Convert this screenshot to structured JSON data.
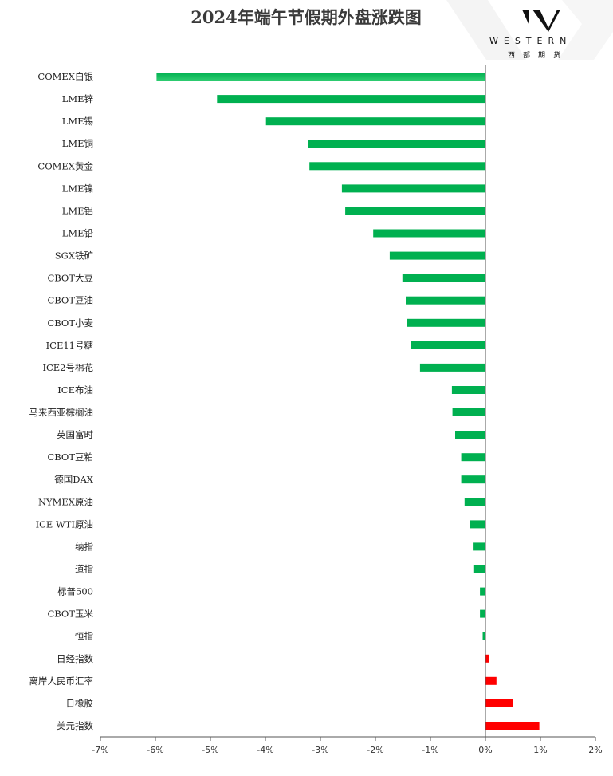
{
  "logo": {
    "name": "WESTERN",
    "name_cn": "西部期货"
  },
  "chart_data": {
    "type": "bar",
    "orientation": "horizontal",
    "title": "2024年端午节假期外盘涨跌图",
    "categories": [
      "COMEX白银",
      "LME锌",
      "LME锡",
      "LME铜",
      "COMEX黄金",
      "LME镍",
      "LME铝",
      "LME铅",
      "SGX铁矿",
      "CBOT大豆",
      "CBOT豆油",
      "CBOT小麦",
      "ICE11号糖",
      "ICE2号棉花",
      "ICE布油",
      "马来西亚棕榈油",
      "英国富时",
      "CBOT豆粕",
      "德国DAX",
      "NYMEX原油",
      "ICE WTI原油",
      "纳指",
      "道指",
      "标普500",
      "CBOT玉米",
      "恒指",
      "日经指数",
      "离岸人民币汇率",
      "日橡胶",
      "美元指数"
    ],
    "values": [
      -5.98,
      -4.88,
      -3.99,
      -3.23,
      -3.2,
      -2.61,
      -2.55,
      -2.04,
      -1.74,
      -1.51,
      -1.45,
      -1.42,
      -1.35,
      -1.19,
      -0.61,
      -0.6,
      -0.55,
      -0.44,
      -0.44,
      -0.38,
      -0.28,
      -0.23,
      -0.22,
      -0.1,
      -0.1,
      -0.05,
      0.07,
      0.2,
      0.5,
      0.98
    ],
    "xlim": [
      -7,
      2
    ],
    "xticks": [
      -7,
      -6,
      -5,
      -4,
      -3,
      -2,
      -1,
      0,
      1,
      2
    ],
    "xtick_labels": [
      "-7%",
      "-6%",
      "-5%",
      "-4%",
      "-3%",
      "-2%",
      "-1%",
      "0%",
      "1%",
      "2%"
    ],
    "colors": {
      "negative": "#00b050",
      "positive": "#ff0000",
      "highlight_negative": "#2ecc71"
    },
    "grid": false,
    "legend": "none"
  }
}
